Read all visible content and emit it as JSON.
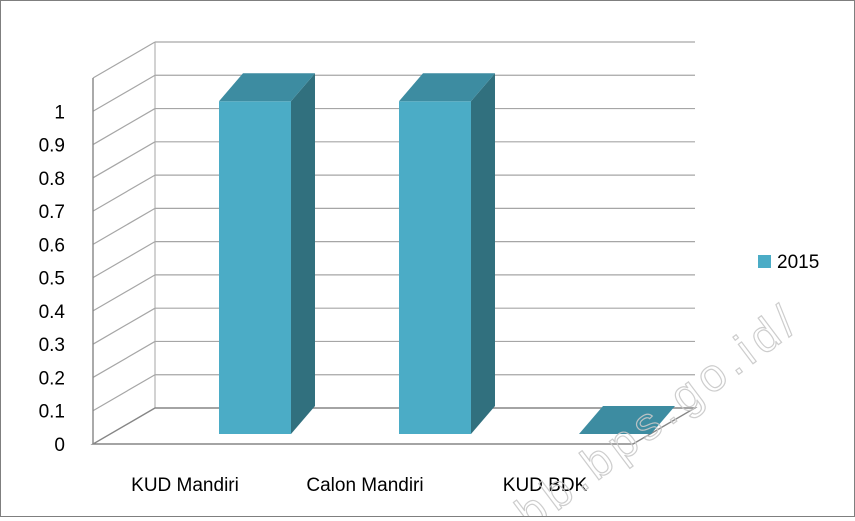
{
  "chart_data": {
    "type": "bar",
    "style": "3d-column",
    "categories": [
      "KUD Mandiri",
      "Calon Mandiri",
      "KUD BDK"
    ],
    "series": [
      {
        "name": "2015",
        "values": [
          1,
          1,
          0
        ]
      }
    ],
    "y_ticks": [
      "0",
      "0.1",
      "0.2",
      "0.3",
      "0.4",
      "0.5",
      "0.6",
      "0.7",
      "0.8",
      "0.9",
      "1"
    ],
    "ylim": [
      0,
      1.1
    ],
    "grid": true,
    "legend_position": "right",
    "colors": {
      "bar_front": "#4bacc6",
      "bar_side": "#31707e",
      "bar_top": "#3d8ca1",
      "gridline": "#a6a6a6",
      "axis": "#868686"
    }
  },
  "watermark": "bb.bps.go.id/"
}
